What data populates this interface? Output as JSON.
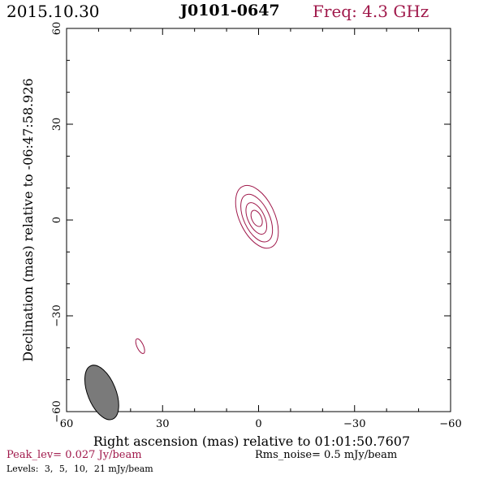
{
  "header": {
    "date": "2015.10.30",
    "source": "J0101-0647",
    "freq": "Freq: 4.3 GHz"
  },
  "chart_data": {
    "type": "contour",
    "xlabel": "Right ascension (mas) relative to 01:01:50.7607",
    "ylabel": "Declination (mas) relative to -06:47:58.926",
    "xlim": [
      60,
      -60
    ],
    "ylim": [
      -60,
      60
    ],
    "xticks": [
      60,
      30,
      0,
      -30,
      -60
    ],
    "yticks": [
      60,
      30,
      0,
      -30,
      -60
    ],
    "contours": [
      {
        "level": 3,
        "center": [
          0.5,
          1.0
        ],
        "a": 10.5,
        "b": 5.5,
        "angle_deg": 25
      },
      {
        "level": 5,
        "center": [
          0.6,
          0.6
        ],
        "a": 8.0,
        "b": 4.0,
        "angle_deg": 25
      },
      {
        "level": 10,
        "center": [
          0.7,
          0.5
        ],
        "a": 5.3,
        "b": 2.6,
        "angle_deg": 25
      },
      {
        "level": 21,
        "center": [
          0.6,
          0.5
        ],
        "a": 2.7,
        "b": 1.5,
        "angle_deg": 25
      },
      {
        "level": 3,
        "center": [
          37.0,
          -39.5
        ],
        "a": 2.5,
        "b": 1.0,
        "angle_deg": 25
      }
    ],
    "beam": {
      "center": [
        49.0,
        -54.0
      ],
      "major": 9.0,
      "minor": 4.4,
      "pa_deg": 22
    },
    "colors": {
      "contour": "#a0194b",
      "beam_fill": "#7a7a7a",
      "axis": "#000000"
    }
  },
  "footer": {
    "peak": "Peak_lev=  0.027 Jy/beam",
    "rms": "Rms_noise=   0.5 mJy/beam",
    "levels_label": "Levels:",
    "levels": [
      "3,",
      "5,",
      "10,",
      "21 mJy/beam"
    ]
  }
}
